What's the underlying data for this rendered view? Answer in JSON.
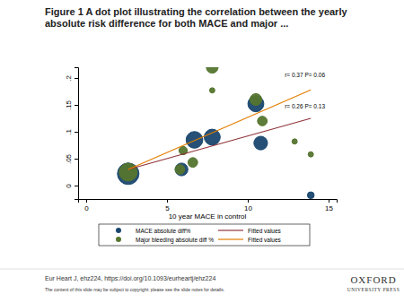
{
  "slide": {
    "title": [
      "Figure 1 A dot plot illustrating the correlation between the yearly",
      "absolute risk difference for both MACE and major ..."
    ],
    "citation": "Eur Heart J, ehz224, https://doi.org/10.1093/eurheartj/ehz224",
    "copyright": "The content of this slide may be subject to copyright: please see the slide notes for details.",
    "publisher": [
      "OXFORD",
      "UNIVERSITY PRESS"
    ]
  },
  "chart_data": {
    "type": "scatter",
    "x_label": "10 year MACE in control",
    "xlim": [
      -0.5,
      15.5
    ],
    "xticks": [
      0,
      5,
      10,
      15
    ],
    "ylim": [
      -0.025,
      0.22
    ],
    "yticks": [
      0,
      {
        "value": 0.05,
        "label": ".05"
      },
      {
        "value": 0.1,
        "label": ".1"
      },
      {
        "value": 0.15,
        "label": ".15"
      },
      {
        "value": 0.2,
        "label": ".2"
      }
    ],
    "grid": false,
    "legend": "bottom",
    "annotations": [
      "r= 0.37 P= 0.06",
      "r= 0.26 P= 0.13"
    ],
    "series": [
      {
        "name": "MACE absolute diff%",
        "type": "scatter",
        "marker": "circle",
        "color": "#1a476f",
        "x": [
          2.6,
          5.9,
          6.7,
          7.8,
          10.5,
          10.8,
          13.9
        ],
        "values": [
          0.022,
          0.03,
          0.085,
          0.09,
          0.152,
          0.079,
          -0.018
        ],
        "sizes": [
          100,
          35,
          60,
          55,
          55,
          40,
          10
        ]
      },
      {
        "name": "Major bleeding absolute diff %",
        "type": "scatter",
        "marker": "circle",
        "color": "#55752f",
        "x": [
          2.6,
          5.8,
          6.0,
          6.6,
          7.8,
          7.8,
          10.5,
          10.9,
          12.9,
          13.9
        ],
        "values": [
          0.025,
          0.03,
          0.065,
          0.043,
          0.22,
          0.177,
          0.16,
          0.12,
          0.082,
          0.058
        ],
        "sizes": [
          70,
          20,
          15,
          20,
          30,
          6,
          30,
          20,
          6,
          6
        ]
      },
      {
        "name": "Fitted values",
        "type": "line",
        "line_style": "solid",
        "color": "#90353b",
        "x": [
          2.6,
          13.9
        ],
        "values": [
          0.03,
          0.125
        ]
      },
      {
        "name": "Fitted values",
        "type": "line",
        "line_style": "solid",
        "color": "#e37e00",
        "x": [
          2.6,
          13.9
        ],
        "values": [
          0.03,
          0.178
        ]
      }
    ]
  }
}
